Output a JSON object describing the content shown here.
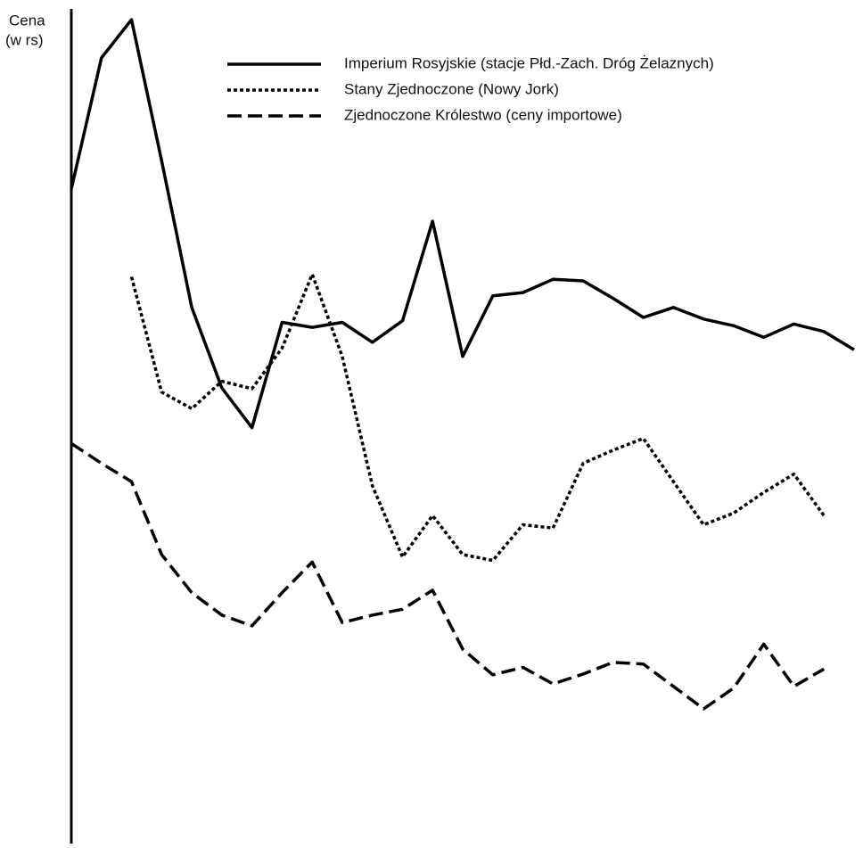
{
  "chart_data": {
    "type": "line",
    "ylabel": [
      "Cena",
      "(w rs)"
    ],
    "ylim": [
      0,
      100
    ],
    "series": [
      {
        "name": "Imperium Rosyjskie (stacje Płd.-Zach. Dróg Żelaznych)",
        "color": "#000000",
        "style": "solid",
        "values": [
          78.3,
          94.1,
          98.7,
          81.7,
          64.0,
          54.3,
          49.5,
          62.2,
          61.6,
          62.2,
          59.8,
          62.4,
          74.4,
          58.1,
          65.4,
          65.8,
          67.4,
          67.2,
          65.1,
          62.8,
          64.0,
          62.6,
          61.8,
          60.4,
          62.0,
          61.1,
          58.9
        ]
      },
      {
        "name": "Stany Zjednoczone (Nowy Jork)",
        "color": "#000000",
        "style": "dotted",
        "values": [
          null,
          null,
          67.7,
          53.8,
          51.8,
          55.1,
          54.2,
          59.1,
          68.0,
          58.1,
          42.5,
          33.9,
          38.9,
          34.2,
          33.5,
          37.8,
          37.4,
          45.2,
          46.8,
          48.2,
          43.0,
          37.8,
          39.2,
          41.7,
          43.9,
          38.9,
          null
        ]
      },
      {
        "name": "Zjednoczone Królestwo (ceny importowe)",
        "color": "#000000",
        "style": "dashed",
        "values": [
          47.6,
          45.2,
          43.0,
          34.2,
          29.6,
          26.9,
          25.6,
          29.6,
          33.3,
          26.0,
          26.9,
          27.6,
          29.9,
          22.8,
          19.7,
          20.6,
          18.6,
          19.8,
          21.2,
          21.0,
          18.3,
          15.6,
          18.1,
          23.4,
          18.3,
          20.4,
          null
        ]
      }
    ]
  }
}
